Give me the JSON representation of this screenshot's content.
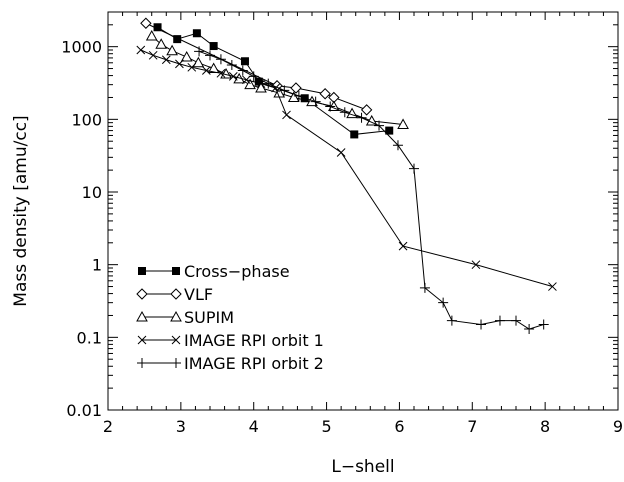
{
  "chart_data": {
    "type": "scatter",
    "title": "",
    "xlabel": "L−shell",
    "ylabel": "Mass density [amu/cc]",
    "xlim": [
      2,
      9
    ],
    "ylim": [
      0.01,
      3000
    ],
    "yscale": "log",
    "grid": false,
    "legend_position": "lower-left",
    "x_ticks": [
      {
        "value": 2,
        "label": "2"
      },
      {
        "value": 3,
        "label": "3"
      },
      {
        "value": 4,
        "label": "4"
      },
      {
        "value": 5,
        "label": "5"
      },
      {
        "value": 6,
        "label": "6"
      },
      {
        "value": 7,
        "label": "7"
      },
      {
        "value": 8,
        "label": "8"
      },
      {
        "value": 9,
        "label": "9"
      }
    ],
    "y_ticks": [
      {
        "value": 0.01,
        "label": "0.01"
      },
      {
        "value": 0.1,
        "label": "0.1"
      },
      {
        "value": 1,
        "label": "1"
      },
      {
        "value": 10,
        "label": "10"
      },
      {
        "value": 100,
        "label": "100"
      },
      {
        "value": 1000,
        "label": "1000"
      }
    ],
    "series": [
      {
        "name": "Cross−phase",
        "marker": "filled-square",
        "x": [
          2.68,
          2.95,
          3.22,
          3.45,
          3.88,
          4.07,
          4.7,
          5.38,
          5.86
        ],
        "y": [
          1850,
          1270,
          1530,
          1020,
          630,
          330,
          195,
          62,
          70
        ]
      },
      {
        "name": "VLF",
        "marker": "diamond",
        "x": [
          2.52,
          4.32,
          4.58,
          4.98,
          5.1,
          5.55
        ],
        "y": [
          2100,
          290,
          270,
          225,
          200,
          135
        ]
      },
      {
        "name": "SUPIM",
        "marker": "triangle",
        "x": [
          2.6,
          2.73,
          2.88,
          3.08,
          3.24,
          3.45,
          3.62,
          3.8,
          3.95,
          4.1,
          4.35,
          4.55,
          4.8,
          5.1,
          5.35,
          5.62,
          6.05
        ],
        "y": [
          1400,
          1080,
          880,
          720,
          600,
          500,
          420,
          360,
          300,
          270,
          230,
          200,
          175,
          150,
          120,
          95,
          85
        ]
      },
      {
        "name": "IMAGE RPI orbit 1",
        "marker": "x",
        "x": [
          2.45,
          2.62,
          2.8,
          2.98,
          3.15,
          3.35,
          3.55,
          3.72,
          3.9,
          4.1,
          4.3,
          4.45,
          5.2,
          6.05,
          7.05,
          8.1
        ],
        "y": [
          900,
          760,
          660,
          580,
          520,
          470,
          430,
          390,
          350,
          310,
          270,
          115,
          35,
          1.8,
          1.0,
          0.5
        ]
      },
      {
        "name": "IMAGE RPI orbit 2",
        "marker": "plus",
        "x": [
          3.25,
          3.4,
          3.55,
          3.7,
          3.85,
          4.0,
          4.2,
          4.42,
          4.62,
          4.85,
          5.05,
          5.25,
          5.48,
          5.72,
          5.98,
          6.2,
          6.35,
          6.6,
          6.72,
          7.12,
          7.38,
          7.6,
          7.78,
          7.98
        ],
        "y": [
          860,
          760,
          670,
          560,
          470,
          390,
          310,
          250,
          210,
          175,
          150,
          125,
          105,
          82,
          44,
          21,
          0.48,
          0.3,
          0.17,
          0.15,
          0.17,
          0.17,
          0.13,
          0.15
        ]
      }
    ]
  }
}
